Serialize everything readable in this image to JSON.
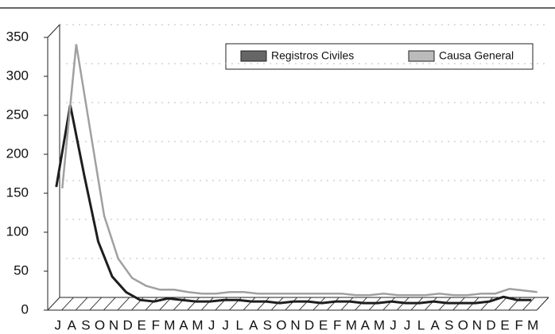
{
  "chart_data": {
    "type": "line",
    "categories": [
      "J",
      "A",
      "S",
      "O",
      "N",
      "D",
      "E",
      "F",
      "M",
      "A",
      "M",
      "J",
      "J",
      "L",
      "A",
      "S",
      "O",
      "N",
      "D",
      "E",
      "F",
      "M",
      "A",
      "M",
      "J",
      "J",
      "L",
      "A",
      "S",
      "O",
      "N",
      "D",
      "E",
      "F",
      "M"
    ],
    "series": [
      {
        "name": "Registros Civiles",
        "color": "#1e1e1e",
        "values": [
          155,
          260,
          170,
          85,
          40,
          20,
          10,
          8,
          12,
          10,
          8,
          8,
          10,
          10,
          8,
          8,
          6,
          8,
          8,
          6,
          8,
          8,
          6,
          6,
          8,
          6,
          6,
          8,
          6,
          6,
          6,
          8,
          14,
          10,
          10
        ]
      },
      {
        "name": "Causa General",
        "color": "#a0a0a0",
        "values": [
          145,
          330,
          220,
          110,
          55,
          30,
          20,
          15,
          15,
          12,
          10,
          10,
          12,
          12,
          10,
          10,
          10,
          10,
          10,
          10,
          10,
          8,
          8,
          10,
          8,
          8,
          8,
          10,
          8,
          8,
          10,
          10,
          16,
          14,
          12
        ]
      }
    ],
    "ylim": [
      0,
      350
    ],
    "yticks": [
      0,
      50,
      100,
      150,
      200,
      250,
      300,
      350
    ],
    "grid": true,
    "legend": "top-right"
  }
}
